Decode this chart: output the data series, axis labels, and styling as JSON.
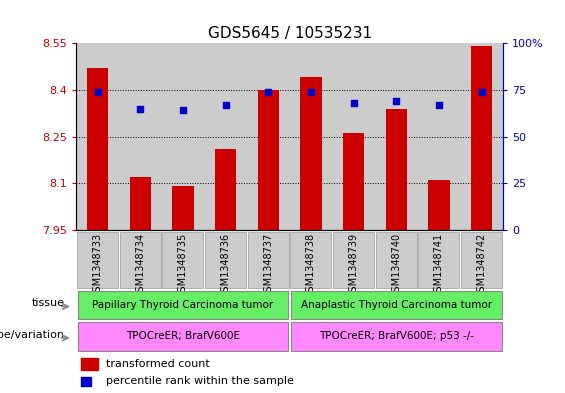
{
  "title": "GDS5645 / 10535231",
  "samples": [
    "GSM1348733",
    "GSM1348734",
    "GSM1348735",
    "GSM1348736",
    "GSM1348737",
    "GSM1348738",
    "GSM1348739",
    "GSM1348740",
    "GSM1348741",
    "GSM1348742"
  ],
  "transformed_counts": [
    8.47,
    8.12,
    8.09,
    8.21,
    8.4,
    8.44,
    8.26,
    8.34,
    8.11,
    8.54
  ],
  "percentile_ranks": [
    74,
    65,
    64,
    67,
    74,
    74,
    68,
    69,
    67,
    74
  ],
  "ylim_left": [
    7.95,
    8.55
  ],
  "ylim_right": [
    0,
    100
  ],
  "yticks_left": [
    7.95,
    8.1,
    8.25,
    8.4,
    8.55
  ],
  "ytick_labels_left": [
    "7.95",
    "8.1",
    "8.25",
    "8.4",
    "8.55"
  ],
  "yticks_right": [
    0,
    25,
    50,
    75,
    100
  ],
  "ytick_labels_right": [
    "0",
    "25",
    "50",
    "75",
    "100%"
  ],
  "hlines": [
    8.1,
    8.25,
    8.4
  ],
  "bar_color": "#cc0000",
  "dot_color": "#0000cc",
  "bar_width": 0.5,
  "tissue_labels": [
    "Papillary Thyroid Carcinoma tumor",
    "Anaplastic Thyroid Carcinoma tumor"
  ],
  "tissue_ranges": [
    [
      0,
      5
    ],
    [
      5,
      10
    ]
  ],
  "tissue_color": "#66ee66",
  "genotype_labels": [
    "TPOCreER; BrafV600E",
    "TPOCreER; BrafV600E; p53 -/-"
  ],
  "genotype_color": "#ff88ff",
  "row_label_tissue": "tissue",
  "row_label_genotype": "genotype/variation",
  "legend_bar_label": "transformed count",
  "legend_dot_label": "percentile rank within the sample",
  "bg_color": "#ffffff",
  "col_bg_color": "#cccccc",
  "spine_color": "#000000",
  "tick_color_left": "#cc0000",
  "tick_color_right": "#0000cc",
  "title_fontsize": 11,
  "tick_fontsize": 8,
  "label_fontsize": 8,
  "sample_fontsize": 7
}
